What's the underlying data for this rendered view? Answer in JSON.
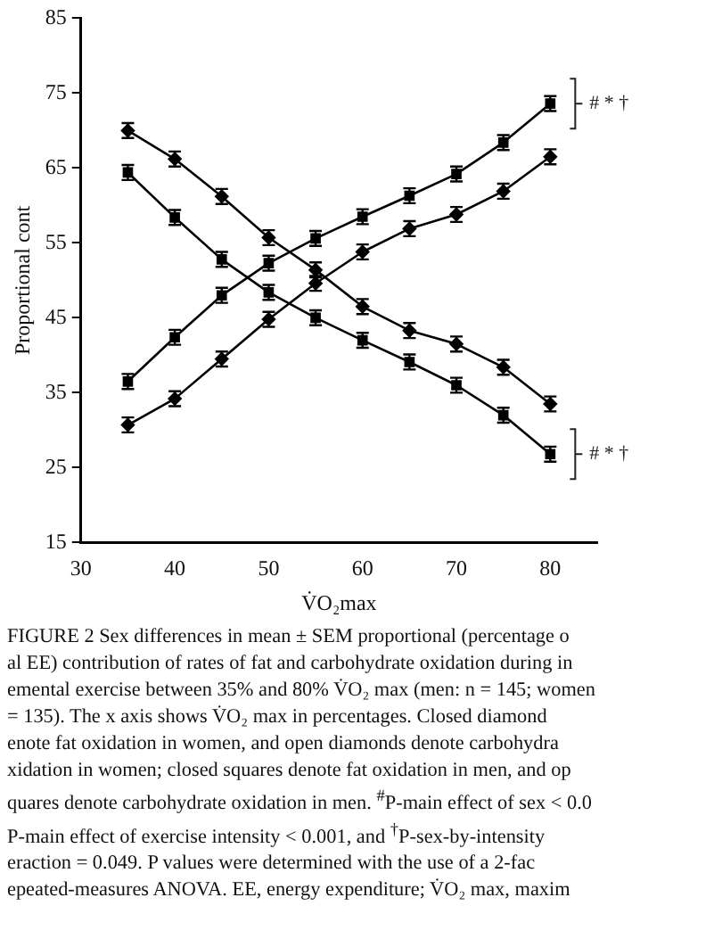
{
  "chart_data": {
    "type": "line",
    "xlabel": "V̇O₂max",
    "ylabel": "Proportional cont",
    "x": [
      35,
      40,
      45,
      50,
      55,
      60,
      65,
      70,
      75,
      80
    ],
    "series": [
      {
        "color": "#000000",
        "marker": "diamond",
        "values": [
          70.0,
          66.2,
          61.2,
          55.7,
          51.4,
          46.5,
          43.3,
          41.5,
          38.4,
          33.5
        ],
        "errors": [
          1,
          1,
          1,
          1,
          1,
          1,
          1,
          1,
          1,
          1
        ]
      },
      {
        "color": "#000000",
        "marker": "square",
        "values": [
          64.4,
          58.4,
          52.8,
          48.4,
          45.0,
          42.0,
          39.1,
          36.0,
          32.0,
          26.8
        ],
        "errors": [
          1,
          1,
          1,
          1,
          1,
          1,
          1,
          1,
          1,
          1
        ]
      },
      {
        "color": "#000000",
        "marker": "diamond",
        "values": [
          30.7,
          34.2,
          39.5,
          44.8,
          49.6,
          53.8,
          56.9,
          58.8,
          61.9,
          66.5
        ],
        "errors": [
          1,
          1,
          1,
          1,
          1,
          1,
          1,
          1,
          1,
          1
        ]
      },
      {
        "color": "#000000",
        "marker": "square",
        "values": [
          36.5,
          42.4,
          48.0,
          52.3,
          55.6,
          58.5,
          61.3,
          64.2,
          68.4,
          73.6
        ],
        "errors": [
          1,
          1,
          1,
          1,
          1,
          1,
          1,
          1,
          1,
          1
        ]
      }
    ],
    "xlim": [
      30,
      85
    ],
    "xticks": [
      30,
      40,
      50,
      60,
      70,
      80
    ],
    "ylim": [
      15,
      85
    ],
    "yticks": [
      15,
      25,
      35,
      45,
      55,
      65,
      75,
      85
    ],
    "grid": false,
    "legend": false,
    "line_style": "solid",
    "annotations": [
      {
        "text": "# * †",
        "x": 80,
        "y": 73.6
      },
      {
        "text": "# * †",
        "x": 80,
        "y": 26.8
      },
      "FIGURE 2   Sex differences in mean ± SEM proportional (percentage o",
      "al EE) contribution of rates of fat and carbohydrate oxidation during in",
      "emental exercise between 35% and 80% V̇O₂ max (men: n = 145; women",
      "= 135). The x axis shows V̇O₂ max in percentages. Closed diamond",
      "enote fat oxidation in women, and open diamonds denote carbohydra",
      "xidation in women; closed squares denote fat oxidation in men, and op",
      "quares denote carbohydrate oxidation in men. $^{#}$P-main effect of sex < 0.0",
      "P-main effect of exercise intensity < 0.001, and $^{†}$P-sex-by-intensity",
      "eraction = 0.049. P values were determined with the use of a 2-fac",
      "epeated-measures ANOVA. EE, energy expenditure; V̇O₂ max, maxim"
    ]
  }
}
